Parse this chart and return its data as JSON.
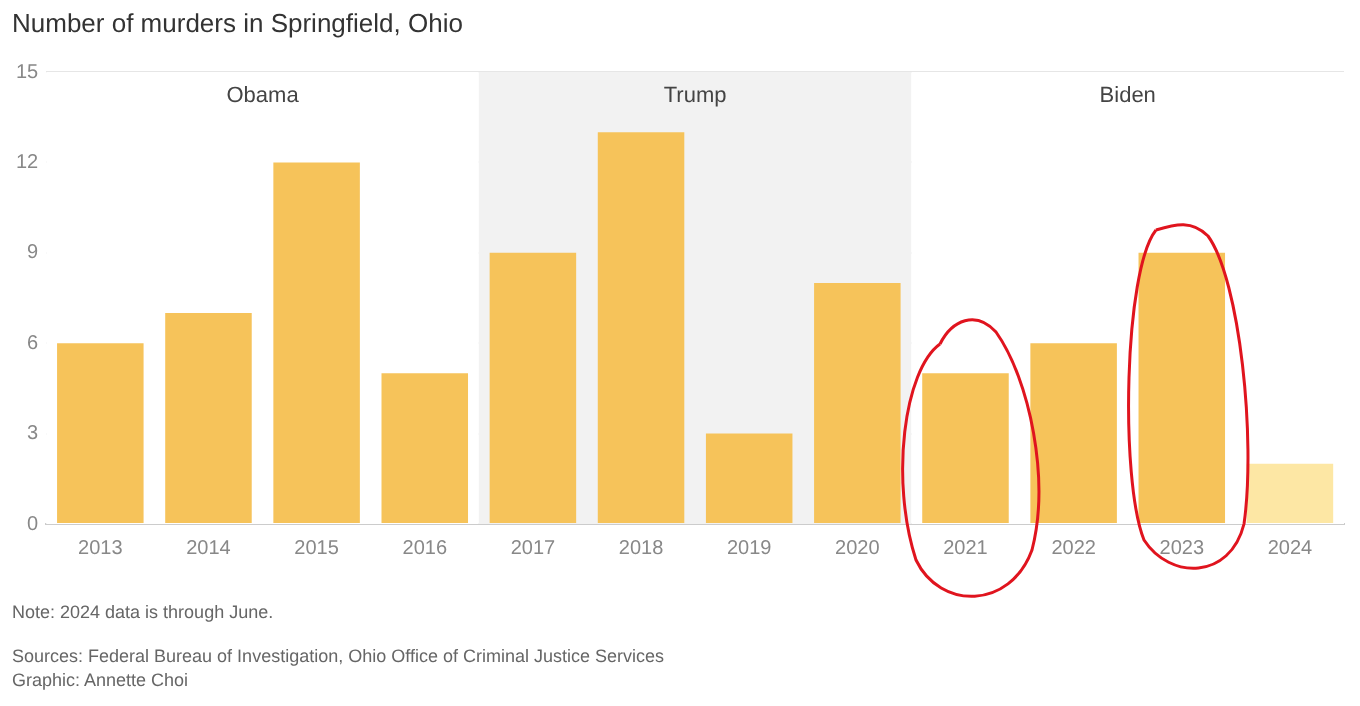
{
  "chart_data": {
    "type": "bar",
    "title": "Number of murders in Springfield, Ohio",
    "categories": [
      "2013",
      "2014",
      "2015",
      "2016",
      "2017",
      "2018",
      "2019",
      "2020",
      "2021",
      "2022",
      "2023",
      "2024"
    ],
    "values": [
      6,
      7,
      12,
      5,
      9,
      13,
      3,
      8,
      5,
      6,
      9,
      2
    ],
    "colors": [
      "#f6c35a",
      "#f6c35a",
      "#f6c35a",
      "#f6c35a",
      "#f6c35a",
      "#f6c35a",
      "#f6c35a",
      "#f6c35a",
      "#f6c35a",
      "#f6c35a",
      "#f6c35a",
      "#fde7a4"
    ],
    "ylim": [
      0,
      15
    ],
    "yticks": [
      0,
      3,
      6,
      9,
      12,
      15
    ],
    "grid": "y",
    "legend": false,
    "bands": [
      {
        "axis": "x",
        "from": "2013",
        "to": "2016",
        "label": "Obama",
        "color": "#ffffff"
      },
      {
        "axis": "x",
        "from": "2017",
        "to": "2020",
        "label": "Trump",
        "color": "#f2f2f2"
      },
      {
        "axis": "x",
        "from": "2021",
        "to": "2024",
        "label": "Biden",
        "color": "#ffffff"
      }
    ],
    "annotations": [
      "Note: 2024 data is through June.",
      "Sources: Federal Bureau of Investigation, Ohio Office of Criminal Justice Services",
      "Graphic: Annette Choi"
    ]
  }
}
